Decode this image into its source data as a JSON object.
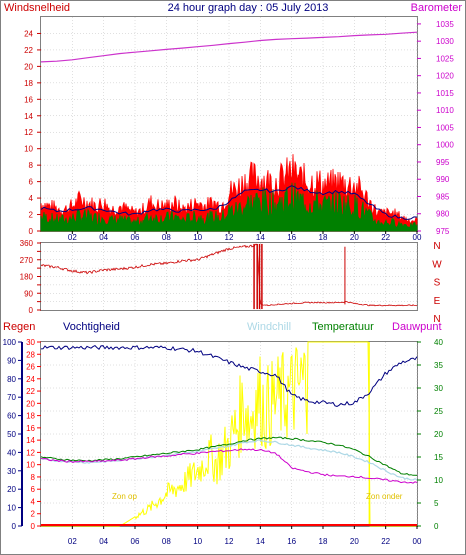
{
  "header": {
    "left_label": "Windsnelheid",
    "title": "24 hour graph day : 05 July 2013",
    "right_label": "Barometer"
  },
  "colors": {
    "frame": "#808080",
    "grid": "#c0c0c0",
    "wind_axis": "#cc0000",
    "baro_axis": "#cc00cc",
    "gust": "#ff0000",
    "avg_wind": "#008000",
    "baro_line": "#cc33cc",
    "dir": "#cc0000",
    "regen": "#ff0000",
    "vochtigheid": "#000080",
    "windchill": "#add8e6",
    "temperatuur": "#008000",
    "dauwpunt": "#cc00cc",
    "sun": "#ffff00",
    "sun_text": "#e0c000",
    "blue_axis": "#000080",
    "green_axis": "#008000"
  },
  "bottom_labels": {
    "regen": "Regen",
    "vochtigheid": "Vochtigheid",
    "windchill": "Windchill",
    "temperatuur": "Temperatuur",
    "dauwpunt": "Dauwpunt",
    "zon_op": "Zon op",
    "zon_onder": "Zon onder"
  },
  "hour_labels": [
    "02",
    "04",
    "06",
    "08",
    "10",
    "12",
    "14",
    "16",
    "18",
    "20",
    "22",
    "00"
  ],
  "compass": [
    "N",
    "W",
    "S",
    "E",
    "N"
  ],
  "chart_data": [
    {
      "type": "line",
      "title": "24 hour graph day : 05 July 2013",
      "x_unit": "hour",
      "xlim": [
        0,
        24
      ],
      "ylabel_left": "Windsnelheid",
      "ylim_left": [
        0,
        26
      ],
      "left_ticks": [
        0,
        2,
        4,
        6,
        8,
        10,
        12,
        14,
        16,
        18,
        20,
        22,
        24
      ],
      "ylabel_right": "Barometer",
      "ylim_right": [
        975,
        1037
      ],
      "right_ticks": [
        975,
        980,
        985,
        990,
        995,
        1000,
        1005,
        1010,
        1015,
        1020,
        1025,
        1030,
        1035
      ],
      "grid": true,
      "series": [
        {
          "name": "Barometer",
          "axis": "right",
          "x": [
            0,
            1,
            2,
            3,
            4,
            5,
            6,
            7,
            8,
            9,
            10,
            11,
            12,
            13,
            14,
            15,
            16,
            17,
            18,
            19,
            20,
            21,
            22,
            23,
            24
          ],
          "y": [
            1024,
            1024.2,
            1024.6,
            1025.2,
            1025.8,
            1026.4,
            1026.8,
            1027.2,
            1027.6,
            1028.0,
            1028.4,
            1028.8,
            1029.3,
            1029.7,
            1030.2,
            1030.5,
            1030.7,
            1030.9,
            1031.1,
            1031.3,
            1031.6,
            1031.8,
            1032.0,
            1032.3,
            1032.6
          ]
        },
        {
          "name": "Windstoten",
          "axis": "left",
          "x": [
            0,
            0.5,
            1,
            1.5,
            2,
            2.5,
            3,
            3.5,
            4,
            4.5,
            5,
            5.5,
            6,
            6.5,
            7,
            7.5,
            8,
            8.5,
            9,
            9.5,
            10,
            10.5,
            11,
            11.5,
            12,
            12.5,
            13,
            13.5,
            14,
            14.5,
            15,
            15.5,
            16,
            16.5,
            17,
            17.5,
            18,
            18.5,
            19,
            19.5,
            20,
            20.5,
            21,
            21.5,
            22,
            22.5,
            23,
            23.5,
            24
          ],
          "y": [
            4,
            3.5,
            3.2,
            3,
            3.5,
            4.5,
            4,
            3.5,
            4,
            3,
            3.5,
            3,
            2.5,
            3,
            4,
            3.5,
            3.5,
            4,
            3,
            3.5,
            4,
            3.5,
            4,
            3.5,
            5.5,
            6,
            7,
            7.5,
            7.5,
            7,
            7,
            7.5,
            8.5,
            7.5,
            7,
            7,
            6.5,
            6.5,
            7,
            6.5,
            6.5,
            5.5,
            4,
            2.5,
            2.5,
            2.5,
            2,
            1.5,
            1.5
          ]
        },
        {
          "name": "Gemiddelde wind",
          "axis": "left",
          "x": [
            0,
            0.5,
            1,
            1.5,
            2,
            2.5,
            3,
            3.5,
            4,
            4.5,
            5,
            5.5,
            6,
            6.5,
            7,
            7.5,
            8,
            8.5,
            9,
            9.5,
            10,
            10.5,
            11,
            11.5,
            12,
            12.5,
            13,
            13.5,
            14,
            14.5,
            15,
            15.5,
            16,
            16.5,
            17,
            17.5,
            18,
            18.5,
            19,
            19.5,
            20,
            20.5,
            21,
            21.5,
            22,
            22.5,
            23,
            23.5,
            24
          ],
          "y": [
            2,
            1.8,
            1.6,
            1.6,
            1.8,
            2.2,
            2,
            1.8,
            2,
            1.5,
            1.6,
            1.4,
            1.2,
            1.5,
            2,
            1.8,
            1.8,
            2,
            1.5,
            1.8,
            2,
            1.8,
            2,
            1.8,
            2.8,
            3,
            3.6,
            4,
            4.2,
            4,
            3.8,
            4.2,
            4.8,
            4.2,
            4,
            4,
            3.6,
            3.6,
            4,
            3.6,
            3.6,
            3,
            2,
            1.2,
            1.2,
            1.2,
            1,
            0.8,
            0.8
          ]
        },
        {
          "name": "Gemiddelde (blauw)",
          "axis": "left",
          "x": [
            0,
            1,
            2,
            3,
            4,
            5,
            6,
            7,
            8,
            9,
            10,
            11,
            12,
            13,
            14,
            15,
            16,
            17,
            18,
            19,
            20,
            21,
            22,
            23,
            24
          ],
          "y": [
            2.8,
            2.4,
            2.6,
            2.8,
            2.6,
            2.2,
            2,
            2.6,
            2.6,
            2.4,
            2.6,
            2.6,
            3.6,
            4.8,
            5,
            4.8,
            5.4,
            4.9,
            4.6,
            4.8,
            4.5,
            3.2,
            2,
            1.6,
            1.6
          ]
        }
      ]
    },
    {
      "type": "scatter",
      "title": "",
      "x_unit": "hour",
      "xlim": [
        0,
        24
      ],
      "ylim": [
        0,
        360
      ],
      "y_ticks": [
        0,
        45,
        90,
        135,
        180,
        225,
        270,
        315,
        360
      ],
      "grid": true,
      "series": [
        {
          "name": "Windrichting",
          "x": [
            0,
            1,
            2,
            3,
            4,
            5,
            6,
            7,
            8,
            9,
            10,
            11,
            12,
            13,
            13.5,
            13.8,
            14,
            14.5,
            15,
            16,
            17,
            18,
            19,
            19.5,
            20,
            21,
            22,
            23,
            24
          ],
          "y": [
            240,
            230,
            210,
            200,
            215,
            220,
            230,
            245,
            250,
            265,
            270,
            300,
            330,
            340,
            345,
            350,
            30,
            25,
            30,
            35,
            40,
            40,
            40,
            45,
            35,
            25,
            25,
            25,
            25
          ]
        }
      ]
    },
    {
      "type": "line",
      "title": "",
      "x_unit": "hour",
      "xlim": [
        0,
        24
      ],
      "axes": {
        "regen": {
          "label": "Regen",
          "ylim": [
            0,
            30
          ],
          "ticks": [
            0,
            2,
            4,
            6,
            8,
            10,
            12,
            14,
            16,
            18,
            20,
            22,
            24,
            26,
            28,
            30
          ]
        },
        "vochtigheid": {
          "label": "Vochtigheid",
          "ylim": [
            0,
            100
          ],
          "ticks": [
            0,
            10,
            20,
            30,
            40,
            50,
            60,
            70,
            80,
            90,
            100
          ]
        },
        "temperatuur": {
          "label": "Temperatuur",
          "ylim": [
            0,
            40
          ],
          "ticks": [
            0,
            5,
            10,
            15,
            20,
            25,
            30,
            35,
            40
          ]
        }
      },
      "grid": true,
      "series": [
        {
          "name": "Vochtigheid",
          "axis": "vochtigheid",
          "x": [
            0,
            1,
            2,
            3,
            4,
            5,
            6,
            7,
            8,
            9,
            10,
            11,
            12,
            13,
            14,
            15,
            16,
            17,
            18,
            19,
            20,
            21,
            22,
            23,
            24
          ],
          "y": [
            97,
            97,
            97,
            97,
            97,
            97,
            97,
            97,
            97,
            96,
            95,
            92,
            89,
            86,
            84,
            82,
            71,
            68,
            67,
            66,
            67,
            73,
            83,
            89,
            91
          ]
        },
        {
          "name": "Windchill",
          "axis": "temperatuur",
          "x": [
            0,
            1,
            2,
            3,
            4,
            5,
            6,
            7,
            8,
            9,
            10,
            11,
            12,
            13,
            14,
            15,
            16,
            17,
            18,
            19,
            20,
            21,
            22,
            23,
            24
          ],
          "y": [
            14.5,
            14.2,
            14.0,
            13.8,
            14.0,
            14.2,
            14.6,
            15.0,
            15.4,
            15.8,
            16.2,
            16.8,
            17.4,
            18.2,
            18.6,
            18.2,
            17.6,
            17.0,
            16.5,
            16.0,
            15.0,
            13.8,
            12.0,
            10.5,
            10.0
          ]
        },
        {
          "name": "Temperatuur",
          "axis": "temperatuur",
          "x": [
            0,
            1,
            2,
            3,
            4,
            5,
            6,
            7,
            8,
            9,
            10,
            11,
            12,
            13,
            14,
            15,
            16,
            17,
            18,
            19,
            20,
            21,
            22,
            23,
            24
          ],
          "y": [
            15.0,
            14.6,
            14.3,
            14.2,
            14.4,
            14.6,
            15.0,
            15.4,
            15.8,
            16.2,
            16.6,
            17.2,
            17.8,
            18.6,
            19.0,
            19.2,
            19.0,
            18.6,
            18.2,
            17.6,
            16.6,
            15.0,
            13.2,
            11.4,
            11.0
          ]
        },
        {
          "name": "Dauwpunt",
          "axis": "temperatuur",
          "x": [
            0,
            1,
            2,
            3,
            4,
            5,
            6,
            7,
            8,
            9,
            10,
            11,
            12,
            13,
            14,
            15,
            16,
            17,
            18,
            19,
            20,
            21,
            22,
            23,
            24
          ],
          "y": [
            14.6,
            14.2,
            14.0,
            14.0,
            14.1,
            14.3,
            14.6,
            15.0,
            15.2,
            15.6,
            15.8,
            16.2,
            16.4,
            16.7,
            16.5,
            15.8,
            12.6,
            11.8,
            11.2,
            10.8,
            10.8,
            10.4,
            10.0,
            9.6,
            9.4
          ]
        },
        {
          "name": "Zonnestraling",
          "axis": "temperatuur",
          "x": [
            0,
            5,
            5.3,
            6,
            7,
            8,
            9,
            10,
            11,
            11.5,
            12,
            12.5,
            13,
            13.3,
            13.6,
            14,
            14.3,
            14.6,
            15,
            15.5,
            16,
            16.5,
            17,
            18,
            19,
            20,
            20.9,
            21
          ],
          "y": [
            0,
            0,
            0.5,
            2,
            4,
            7,
            9,
            12,
            16,
            19,
            22,
            27,
            34,
            28,
            33,
            35,
            31,
            33,
            34,
            35,
            36,
            38,
            40,
            40,
            40,
            40,
            40,
            0
          ]
        },
        {
          "name": "Regen",
          "axis": "regen",
          "x": [
            0,
            24
          ],
          "y": [
            0,
            0
          ]
        }
      ]
    }
  ]
}
